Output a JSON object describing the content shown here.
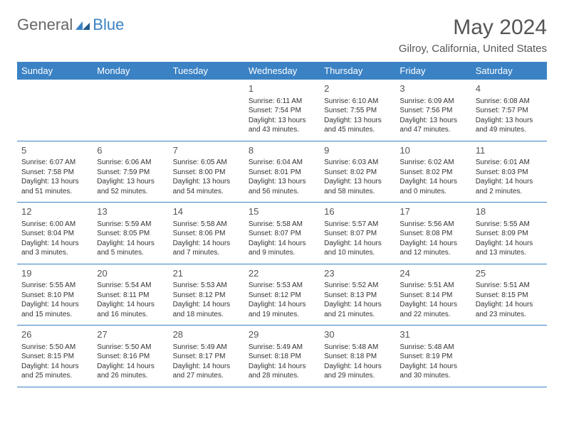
{
  "brand": {
    "part1": "General",
    "part2": "Blue"
  },
  "title": "May 2024",
  "location": "Gilroy, California, United States",
  "colors": {
    "header_bg": "#3b82c4",
    "header_text": "#ffffff",
    "text": "#333333",
    "muted": "#555555",
    "rule": "#3b82c4",
    "background": "#ffffff"
  },
  "typography": {
    "title_fontsize": 30,
    "location_fontsize": 15,
    "dayheader_fontsize": 13,
    "daynum_fontsize": 13,
    "body_fontsize": 10
  },
  "day_names": [
    "Sunday",
    "Monday",
    "Tuesday",
    "Wednesday",
    "Thursday",
    "Friday",
    "Saturday"
  ],
  "weeks": [
    [
      null,
      null,
      null,
      {
        "n": "1",
        "sr": "Sunrise: 6:11 AM",
        "ss": "Sunset: 7:54 PM",
        "d1": "Daylight: 13 hours",
        "d2": "and 43 minutes."
      },
      {
        "n": "2",
        "sr": "Sunrise: 6:10 AM",
        "ss": "Sunset: 7:55 PM",
        "d1": "Daylight: 13 hours",
        "d2": "and 45 minutes."
      },
      {
        "n": "3",
        "sr": "Sunrise: 6:09 AM",
        "ss": "Sunset: 7:56 PM",
        "d1": "Daylight: 13 hours",
        "d2": "and 47 minutes."
      },
      {
        "n": "4",
        "sr": "Sunrise: 6:08 AM",
        "ss": "Sunset: 7:57 PM",
        "d1": "Daylight: 13 hours",
        "d2": "and 49 minutes."
      }
    ],
    [
      {
        "n": "5",
        "sr": "Sunrise: 6:07 AM",
        "ss": "Sunset: 7:58 PM",
        "d1": "Daylight: 13 hours",
        "d2": "and 51 minutes."
      },
      {
        "n": "6",
        "sr": "Sunrise: 6:06 AM",
        "ss": "Sunset: 7:59 PM",
        "d1": "Daylight: 13 hours",
        "d2": "and 52 minutes."
      },
      {
        "n": "7",
        "sr": "Sunrise: 6:05 AM",
        "ss": "Sunset: 8:00 PM",
        "d1": "Daylight: 13 hours",
        "d2": "and 54 minutes."
      },
      {
        "n": "8",
        "sr": "Sunrise: 6:04 AM",
        "ss": "Sunset: 8:01 PM",
        "d1": "Daylight: 13 hours",
        "d2": "and 56 minutes."
      },
      {
        "n": "9",
        "sr": "Sunrise: 6:03 AM",
        "ss": "Sunset: 8:02 PM",
        "d1": "Daylight: 13 hours",
        "d2": "and 58 minutes."
      },
      {
        "n": "10",
        "sr": "Sunrise: 6:02 AM",
        "ss": "Sunset: 8:02 PM",
        "d1": "Daylight: 14 hours",
        "d2": "and 0 minutes."
      },
      {
        "n": "11",
        "sr": "Sunrise: 6:01 AM",
        "ss": "Sunset: 8:03 PM",
        "d1": "Daylight: 14 hours",
        "d2": "and 2 minutes."
      }
    ],
    [
      {
        "n": "12",
        "sr": "Sunrise: 6:00 AM",
        "ss": "Sunset: 8:04 PM",
        "d1": "Daylight: 14 hours",
        "d2": "and 3 minutes."
      },
      {
        "n": "13",
        "sr": "Sunrise: 5:59 AM",
        "ss": "Sunset: 8:05 PM",
        "d1": "Daylight: 14 hours",
        "d2": "and 5 minutes."
      },
      {
        "n": "14",
        "sr": "Sunrise: 5:58 AM",
        "ss": "Sunset: 8:06 PM",
        "d1": "Daylight: 14 hours",
        "d2": "and 7 minutes."
      },
      {
        "n": "15",
        "sr": "Sunrise: 5:58 AM",
        "ss": "Sunset: 8:07 PM",
        "d1": "Daylight: 14 hours",
        "d2": "and 9 minutes."
      },
      {
        "n": "16",
        "sr": "Sunrise: 5:57 AM",
        "ss": "Sunset: 8:07 PM",
        "d1": "Daylight: 14 hours",
        "d2": "and 10 minutes."
      },
      {
        "n": "17",
        "sr": "Sunrise: 5:56 AM",
        "ss": "Sunset: 8:08 PM",
        "d1": "Daylight: 14 hours",
        "d2": "and 12 minutes."
      },
      {
        "n": "18",
        "sr": "Sunrise: 5:55 AM",
        "ss": "Sunset: 8:09 PM",
        "d1": "Daylight: 14 hours",
        "d2": "and 13 minutes."
      }
    ],
    [
      {
        "n": "19",
        "sr": "Sunrise: 5:55 AM",
        "ss": "Sunset: 8:10 PM",
        "d1": "Daylight: 14 hours",
        "d2": "and 15 minutes."
      },
      {
        "n": "20",
        "sr": "Sunrise: 5:54 AM",
        "ss": "Sunset: 8:11 PM",
        "d1": "Daylight: 14 hours",
        "d2": "and 16 minutes."
      },
      {
        "n": "21",
        "sr": "Sunrise: 5:53 AM",
        "ss": "Sunset: 8:12 PM",
        "d1": "Daylight: 14 hours",
        "d2": "and 18 minutes."
      },
      {
        "n": "22",
        "sr": "Sunrise: 5:53 AM",
        "ss": "Sunset: 8:12 PM",
        "d1": "Daylight: 14 hours",
        "d2": "and 19 minutes."
      },
      {
        "n": "23",
        "sr": "Sunrise: 5:52 AM",
        "ss": "Sunset: 8:13 PM",
        "d1": "Daylight: 14 hours",
        "d2": "and 21 minutes."
      },
      {
        "n": "24",
        "sr": "Sunrise: 5:51 AM",
        "ss": "Sunset: 8:14 PM",
        "d1": "Daylight: 14 hours",
        "d2": "and 22 minutes."
      },
      {
        "n": "25",
        "sr": "Sunrise: 5:51 AM",
        "ss": "Sunset: 8:15 PM",
        "d1": "Daylight: 14 hours",
        "d2": "and 23 minutes."
      }
    ],
    [
      {
        "n": "26",
        "sr": "Sunrise: 5:50 AM",
        "ss": "Sunset: 8:15 PM",
        "d1": "Daylight: 14 hours",
        "d2": "and 25 minutes."
      },
      {
        "n": "27",
        "sr": "Sunrise: 5:50 AM",
        "ss": "Sunset: 8:16 PM",
        "d1": "Daylight: 14 hours",
        "d2": "and 26 minutes."
      },
      {
        "n": "28",
        "sr": "Sunrise: 5:49 AM",
        "ss": "Sunset: 8:17 PM",
        "d1": "Daylight: 14 hours",
        "d2": "and 27 minutes."
      },
      {
        "n": "29",
        "sr": "Sunrise: 5:49 AM",
        "ss": "Sunset: 8:18 PM",
        "d1": "Daylight: 14 hours",
        "d2": "and 28 minutes."
      },
      {
        "n": "30",
        "sr": "Sunrise: 5:48 AM",
        "ss": "Sunset: 8:18 PM",
        "d1": "Daylight: 14 hours",
        "d2": "and 29 minutes."
      },
      {
        "n": "31",
        "sr": "Sunrise: 5:48 AM",
        "ss": "Sunset: 8:19 PM",
        "d1": "Daylight: 14 hours",
        "d2": "and 30 minutes."
      },
      null
    ]
  ]
}
